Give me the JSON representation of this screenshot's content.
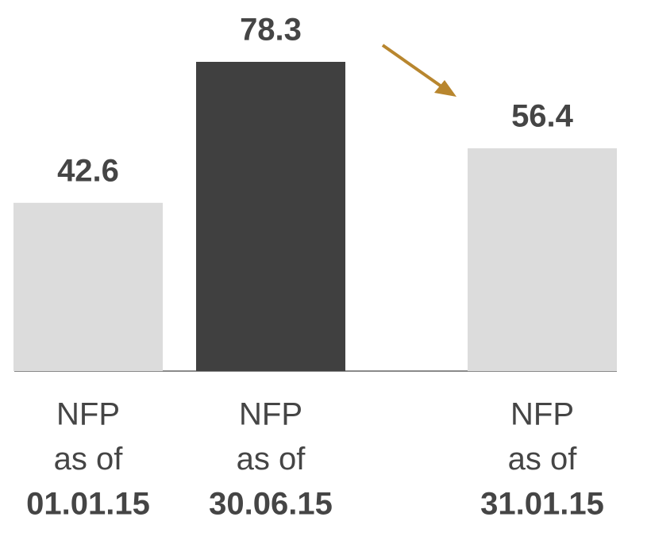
{
  "chart_data": {
    "type": "bar",
    "categories": [
      [
        "NFP",
        "as of",
        "01.01.15"
      ],
      [
        "NFP",
        "as of",
        "30.06.15"
      ],
      [
        "NFP",
        "as of",
        "31.01.15"
      ]
    ],
    "values": [
      42.6,
      78.3,
      56.4
    ],
    "colors": [
      "#dcdcdc",
      "#404040",
      "#dcdcdc"
    ]
  }
}
